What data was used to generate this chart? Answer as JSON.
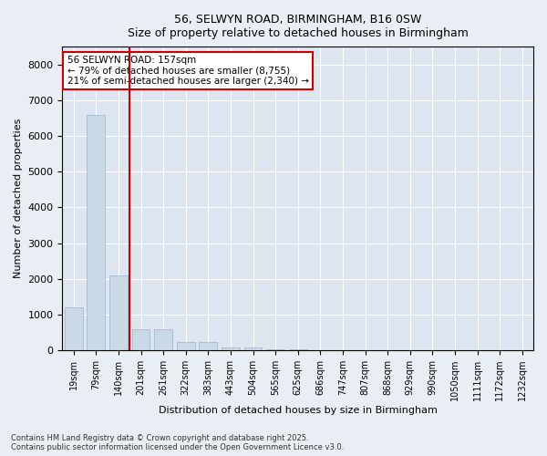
{
  "title1": "56, SELWYN ROAD, BIRMINGHAM, B16 0SW",
  "title2": "Size of property relative to detached houses in Birmingham",
  "xlabel": "Distribution of detached houses by size in Birmingham",
  "ylabel": "Number of detached properties",
  "categories": [
    "19sqm",
    "79sqm",
    "140sqm",
    "201sqm",
    "261sqm",
    "322sqm",
    "383sqm",
    "443sqm",
    "504sqm",
    "565sqm",
    "625sqm",
    "686sqm",
    "747sqm",
    "807sqm",
    "868sqm",
    "929sqm",
    "990sqm",
    "1050sqm",
    "1111sqm",
    "1172sqm",
    "1232sqm"
  ],
  "values": [
    1200,
    6600,
    2100,
    580,
    580,
    230,
    230,
    90,
    90,
    40,
    20,
    0,
    0,
    0,
    0,
    0,
    0,
    0,
    0,
    0,
    0
  ],
  "bar_color": "#c9d9e8",
  "bar_edge_color": "#a0bcd0",
  "vline_color": "#cc0000",
  "vline_x": 2.5,
  "annotation_text": "56 SELWYN ROAD: 157sqm\n← 79% of detached houses are smaller (8,755)\n21% of semi-detached houses are larger (2,340) →",
  "annotation_box_color": "#ffffff",
  "annotation_box_edge": "#cc0000",
  "ylim": [
    0,
    8500
  ],
  "yticks": [
    0,
    1000,
    2000,
    3000,
    4000,
    5000,
    6000,
    7000,
    8000
  ],
  "footer1": "Contains HM Land Registry data © Crown copyright and database right 2025.",
  "footer2": "Contains public sector information licensed under the Open Government Licence v3.0.",
  "bg_color": "#e8eef4",
  "plot_bg_color": "#dde6f0"
}
